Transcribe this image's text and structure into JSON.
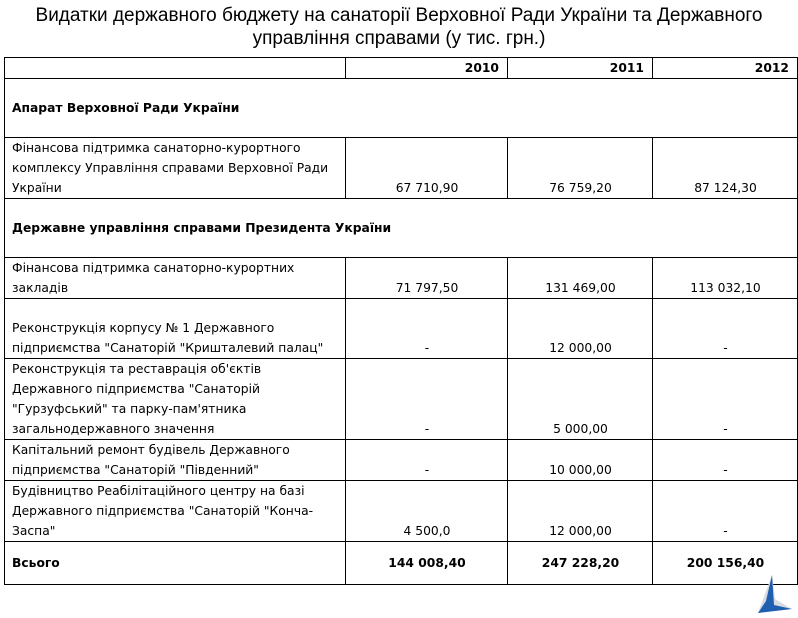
{
  "title": "Видатки державного бюджету на санаторії Верховної Ради України та Державного управління справами (у тис. грн.)",
  "columns": [
    "",
    "2010",
    "2011",
    "2012"
  ],
  "sections": [
    {
      "heading": "Апарат Верховної Ради України",
      "rows": [
        {
          "label": "Фінансова підтримка санаторно-курортного комплексу Управління справами Верховної Ради України",
          "values": [
            "67 710,90",
            "76 759,20",
            "87 124,30"
          ]
        }
      ]
    },
    {
      "heading": "Державне управління справами Президента України",
      "rows": [
        {
          "label": "Фінансова підтримка санаторно-курортних закладів",
          "values": [
            "71 797,50",
            "131 469,00",
            "113 032,10"
          ]
        },
        {
          "label": "Реконструкція корпусу № 1 Державного підприємства \"Санаторій \"Кришталевий палац\"",
          "values": [
            "-",
            "12 000,00",
            "-"
          ]
        },
        {
          "label": "Реконструкція та реставрація об'єктів Державного підприємства \"Санаторій \"Гурзуфський\" та парку-пам'ятника загальнодержавного значення",
          "values": [
            "-",
            "5 000,00",
            "-"
          ]
        },
        {
          "label": "Капітальний ремонт будівель Державного підприємства \"Санаторій \"Південний\"",
          "values": [
            "-",
            "10 000,00",
            "-"
          ]
        },
        {
          "label": "Будівництво Реабілітаційного центру на базі Державного підприємства \"Санаторій \"Конча-Заспа\"",
          "values": [
            "4 500,0",
            "12 000,00",
            "-"
          ]
        }
      ]
    }
  ],
  "total": {
    "label": "Всього",
    "values": [
      "144 008,40",
      "247 228,20",
      "200 156,40"
    ]
  },
  "logo": {
    "icon": "triangle-logo-icon",
    "color": "#1f5fb0"
  }
}
